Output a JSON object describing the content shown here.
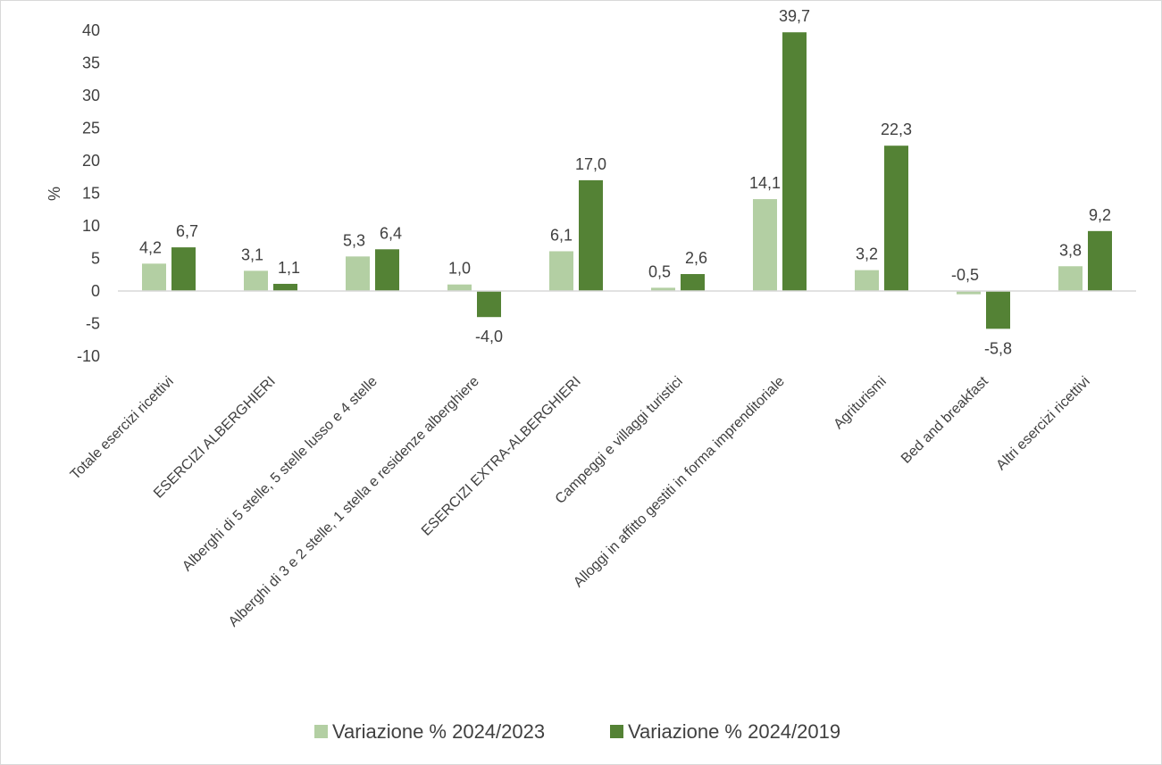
{
  "chart_data": {
    "type": "bar",
    "ylabel": "%",
    "xlabel": "",
    "ylim": [
      -10,
      40
    ],
    "yticks": [
      -10,
      -5,
      0,
      5,
      10,
      15,
      20,
      25,
      30,
      35,
      40
    ],
    "grid": false,
    "legend_position": "bottom",
    "categories": [
      "Totale esercizi ricettivi",
      "ESERCIZI ALBERGHIERI",
      "Alberghi di 5 stelle, 5 stelle lusso e 4 stelle",
      "Alberghi di 3 e 2 stelle, 1 stella e residenze alberghiere",
      "ESERCIZI EXTRA-ALBERGHIERI",
      "Campeggi e villaggi turistici",
      "Alloggi in affitto gestiti in forma imprenditoriale",
      "Agriturismi",
      "Bed and breakfast",
      "Altri esercizi ricettivi"
    ],
    "series": [
      {
        "name": "Variazione % 2024/2023",
        "color": "#b3cfa3",
        "values": [
          4.2,
          3.1,
          5.3,
          1.0,
          6.1,
          0.5,
          14.1,
          3.2,
          -0.5,
          3.8
        ],
        "labels": [
          "4,2",
          "3,1",
          "5,3",
          "1,0",
          "6,1",
          "0,5",
          "14,1",
          "3,2",
          "-0,5",
          "3,8"
        ]
      },
      {
        "name": "Variazione % 2024/2019",
        "color": "#548235",
        "values": [
          6.7,
          1.1,
          6.4,
          -4.0,
          17.0,
          2.6,
          39.7,
          22.3,
          -5.8,
          9.2
        ],
        "labels": [
          "6,7",
          "1,1",
          "6,4",
          "-4,0",
          "17,0",
          "2,6",
          "39,7",
          "22,3",
          "-5,8",
          "9,2"
        ]
      }
    ]
  }
}
